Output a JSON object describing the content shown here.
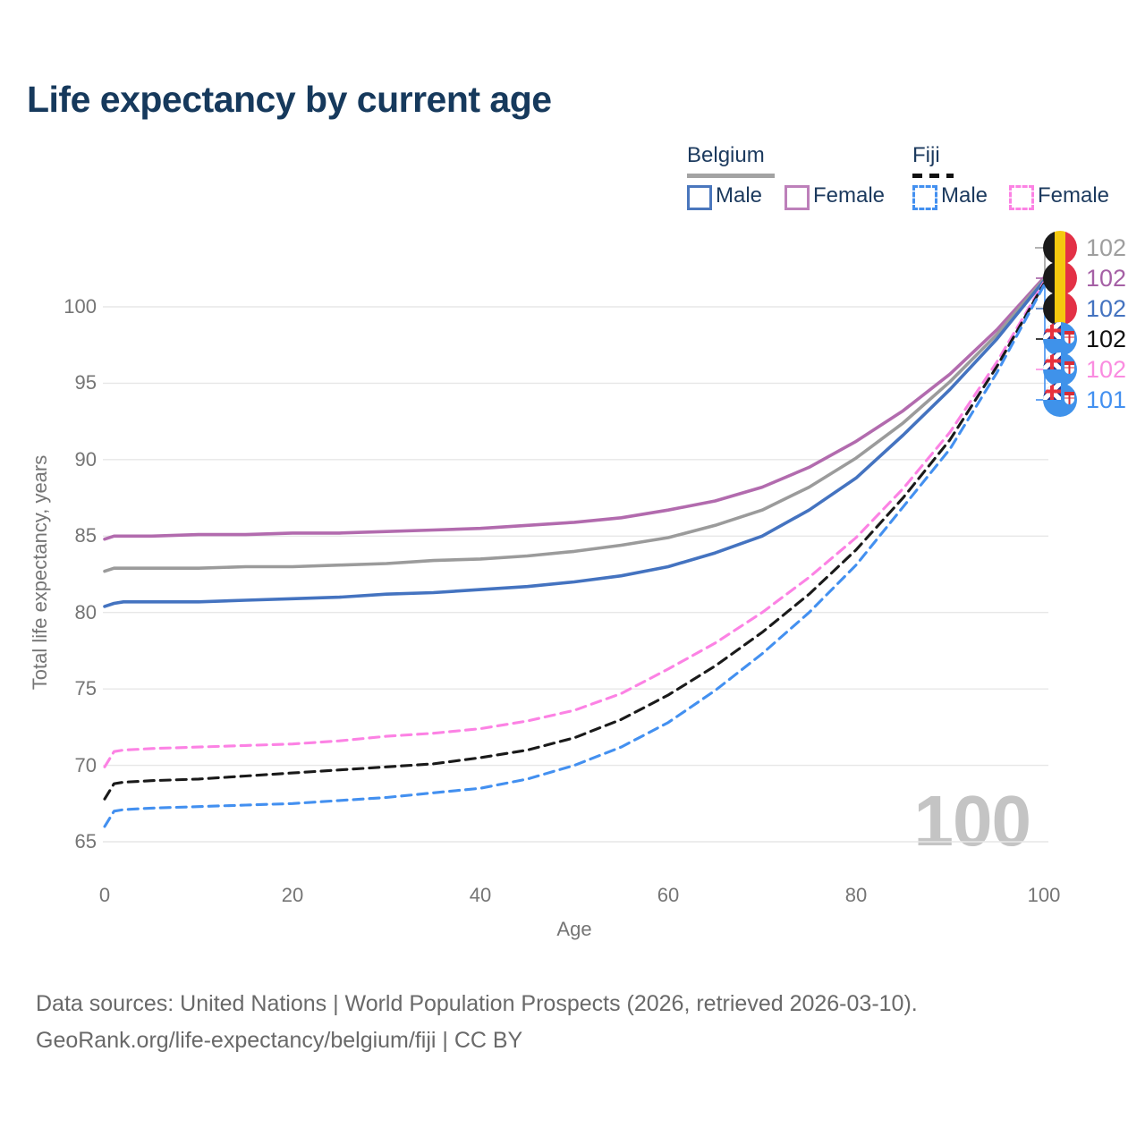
{
  "title": "Life expectancy by current age",
  "legend": {
    "groups": [
      {
        "label": "Belgium",
        "line_style": "solid",
        "items": [
          {
            "label": "Male",
            "color": "#4a77bd",
            "dashed": false
          },
          {
            "label": "Female",
            "color": "#bd80ba",
            "dashed": false
          }
        ]
      },
      {
        "label": "Fiji",
        "line_style": "dashed",
        "items": [
          {
            "label": "Male",
            "color": "#4390f0",
            "dashed": true
          },
          {
            "label": "Female",
            "color": "#fc82e4",
            "dashed": true
          }
        ]
      }
    ]
  },
  "chart_data": {
    "type": "line",
    "title": "Life expectancy by current age",
    "xlabel": "Age",
    "ylabel": "Total life expectancy, years",
    "xlim": [
      0,
      100
    ],
    "ylim": [
      65,
      102
    ],
    "x_ticks": [
      0,
      20,
      40,
      60,
      80,
      100
    ],
    "y_ticks": [
      65,
      70,
      75,
      80,
      85,
      90,
      95,
      100
    ],
    "grid": "horizontal",
    "x": [
      0,
      1,
      2,
      5,
      10,
      15,
      20,
      25,
      30,
      35,
      40,
      45,
      50,
      55,
      60,
      65,
      70,
      75,
      80,
      85,
      90,
      95,
      100
    ],
    "series": [
      {
        "name": "Belgium Female",
        "country": "Belgium",
        "sex": "Female",
        "color": "#b26bae",
        "dashed": false,
        "values": [
          84.8,
          85.0,
          85.0,
          85.0,
          85.1,
          85.1,
          85.2,
          85.2,
          85.3,
          85.4,
          85.5,
          85.7,
          85.9,
          86.2,
          86.7,
          87.3,
          88.2,
          89.5,
          91.2,
          93.2,
          95.6,
          98.5,
          101.9
        ]
      },
      {
        "name": "Belgium Both sexes",
        "country": "Belgium",
        "sex": "Both",
        "color": "#9b9b9b",
        "dashed": false,
        "values": [
          82.7,
          82.9,
          82.9,
          82.9,
          82.9,
          83.0,
          83.0,
          83.1,
          83.2,
          83.4,
          83.5,
          83.7,
          84.0,
          84.4,
          84.9,
          85.7,
          86.7,
          88.2,
          90.1,
          92.4,
          95.1,
          98.2,
          101.8
        ]
      },
      {
        "name": "Belgium Male",
        "country": "Belgium",
        "sex": "Male",
        "color": "#4473c0",
        "dashed": false,
        "values": [
          80.4,
          80.6,
          80.7,
          80.7,
          80.7,
          80.8,
          80.9,
          81.0,
          81.2,
          81.3,
          81.5,
          81.7,
          82.0,
          82.4,
          83.0,
          83.9,
          85.0,
          86.7,
          88.8,
          91.6,
          94.6,
          97.9,
          101.7
        ]
      },
      {
        "name": "Fiji Female",
        "country": "Fiji",
        "sex": "Female",
        "color": "#fc82e4",
        "dashed": true,
        "values": [
          69.9,
          70.9,
          71.0,
          71.1,
          71.2,
          71.3,
          71.4,
          71.6,
          71.9,
          72.1,
          72.4,
          72.9,
          73.6,
          74.7,
          76.3,
          78.0,
          80.0,
          82.3,
          84.9,
          88.1,
          91.8,
          96.4,
          101.6
        ]
      },
      {
        "name": "Fiji Both sexes",
        "country": "Fiji",
        "sex": "Both",
        "color": "#1a1a1a",
        "dashed": true,
        "values": [
          67.8,
          68.8,
          68.9,
          69.0,
          69.1,
          69.3,
          69.5,
          69.7,
          69.9,
          70.1,
          70.5,
          71.0,
          71.8,
          73.0,
          74.6,
          76.5,
          78.7,
          81.2,
          84.1,
          87.5,
          91.3,
          96.1,
          101.5
        ]
      },
      {
        "name": "Fiji Male",
        "country": "Fiji",
        "sex": "Male",
        "color": "#4390f0",
        "dashed": true,
        "values": [
          66.0,
          67.0,
          67.1,
          67.2,
          67.3,
          67.4,
          67.5,
          67.7,
          67.9,
          68.2,
          68.5,
          69.1,
          70.0,
          71.2,
          72.8,
          74.9,
          77.3,
          80.0,
          83.1,
          86.9,
          90.7,
          95.7,
          101.4
        ]
      }
    ]
  },
  "end_labels": [
    {
      "country": "belgium",
      "value": "102",
      "color": "#9e9e9e",
      "series": "Belgium Both sexes"
    },
    {
      "country": "belgium",
      "value": "102",
      "color": "#a560a5",
      "series": "Belgium Female"
    },
    {
      "country": "belgium",
      "value": "102",
      "color": "#4473c0",
      "series": "Belgium Male"
    },
    {
      "country": "fiji",
      "value": "102",
      "color": "#111111",
      "series": "Fiji Both sexes"
    },
    {
      "country": "fiji",
      "value": "102",
      "color": "#fa8ce0",
      "series": "Fiji Female"
    },
    {
      "country": "fiji",
      "value": "101",
      "color": "#4390f0",
      "series": "Fiji Male"
    }
  ],
  "watermark": "100",
  "footer": {
    "line1": "Data sources: United Nations | World Population Prospects (2026, retrieved 2026-03-10).",
    "line2": "GeoRank.org/life-expectancy/belgium/fiji | CC BY"
  }
}
